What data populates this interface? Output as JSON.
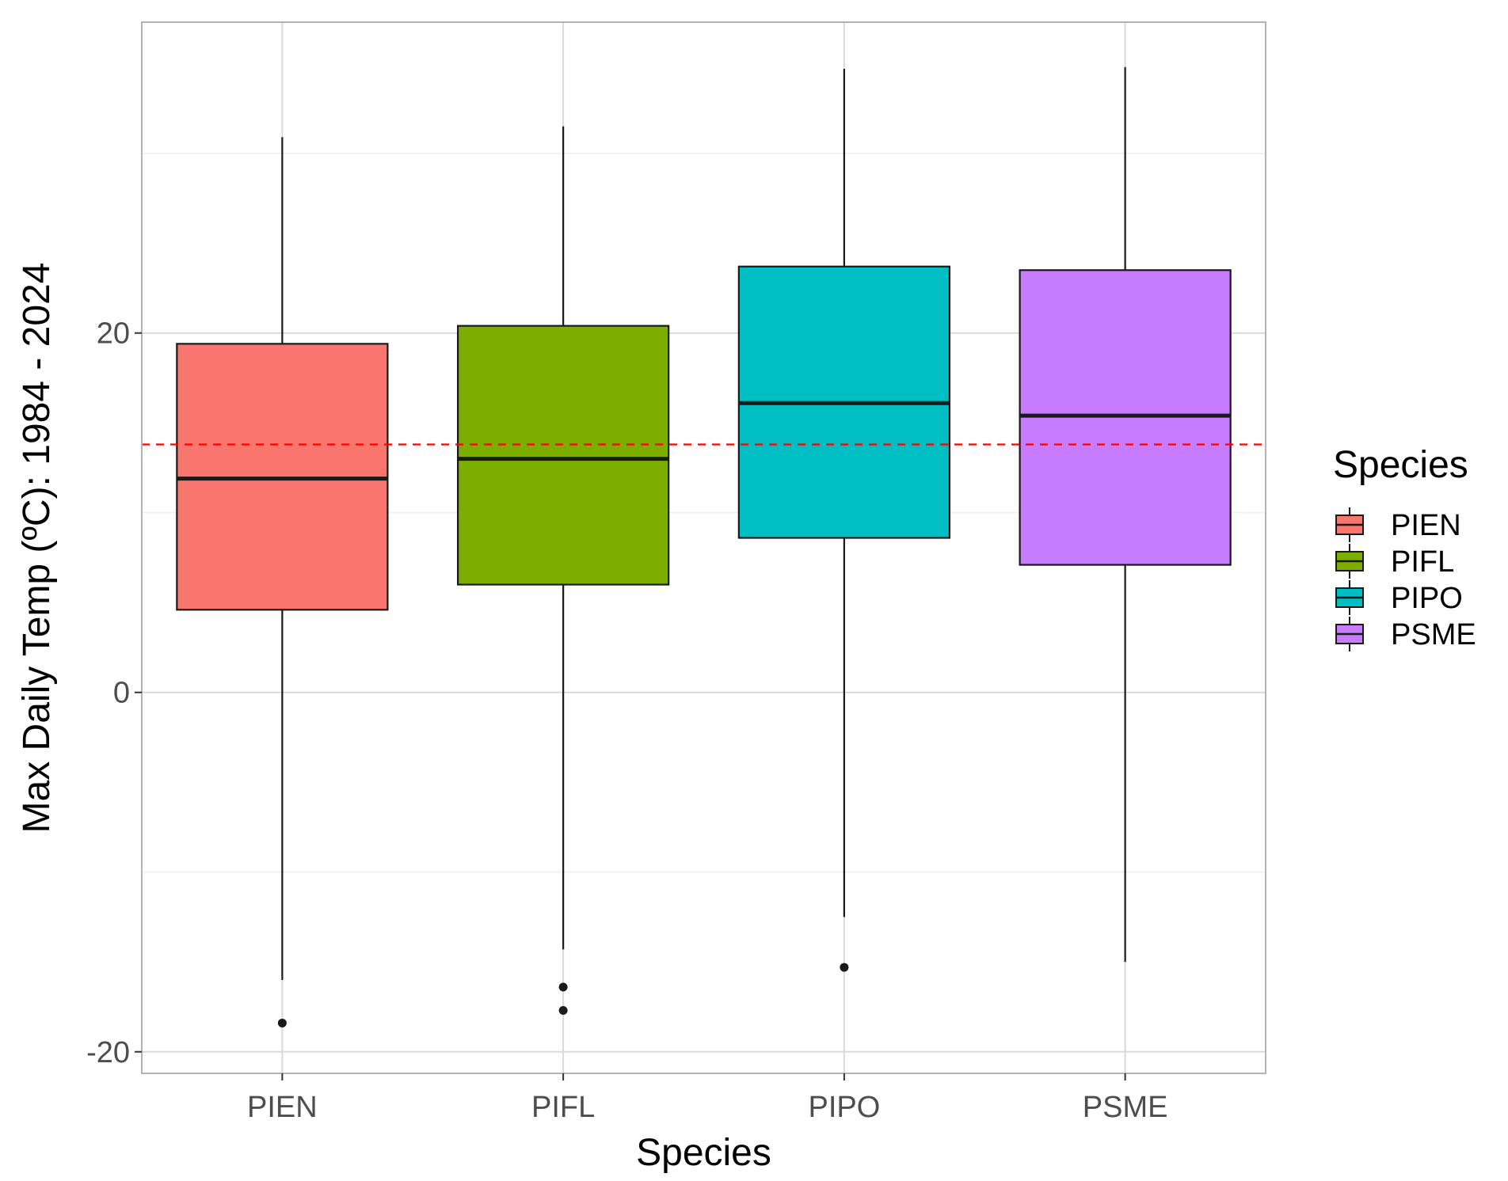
{
  "chart_data": {
    "type": "boxplot",
    "xlabel": "Species",
    "ylabel": "Max Daily Temp (ºC): 1984 - 2024",
    "ylim": [
      -21.2,
      37.3
    ],
    "yticks": [
      -20,
      0,
      20
    ],
    "yticklabels": [
      "-20",
      "0",
      "20"
    ],
    "minor_yticks": [
      -10,
      10,
      30
    ],
    "categories": [
      "PIEN",
      "PIFL",
      "PIPO",
      "PSME"
    ],
    "boxes": [
      {
        "name": "PIEN",
        "color": "#F8766D",
        "whisker_low": -16.0,
        "q1": 4.6,
        "median": 11.9,
        "q3": 19.4,
        "whisker_high": 30.9,
        "outliers": [
          -18.4
        ]
      },
      {
        "name": "PIFL",
        "color": "#7CAE00",
        "whisker_low": -14.3,
        "q1": 6.0,
        "median": 13.0,
        "q3": 20.4,
        "whisker_high": 31.5,
        "outliers": [
          -16.4,
          -17.7
        ]
      },
      {
        "name": "PIPO",
        "color": "#00BFC4",
        "whisker_low": -12.5,
        "q1": 8.6,
        "median": 16.1,
        "q3": 23.7,
        "whisker_high": 34.7,
        "outliers": [
          -15.3
        ]
      },
      {
        "name": "PSME",
        "color": "#C77CFF",
        "whisker_low": -15.0,
        "q1": 7.1,
        "median": 15.4,
        "q3": 23.5,
        "whisker_high": 34.8,
        "outliers": []
      }
    ],
    "reference_line": {
      "y": 13.8,
      "color": "#FF0000",
      "style": "dashed"
    },
    "legend": {
      "title": "Species",
      "position": "right",
      "entries": [
        "PIEN",
        "PIFL",
        "PIPO",
        "PSME"
      ]
    },
    "grid": true
  }
}
